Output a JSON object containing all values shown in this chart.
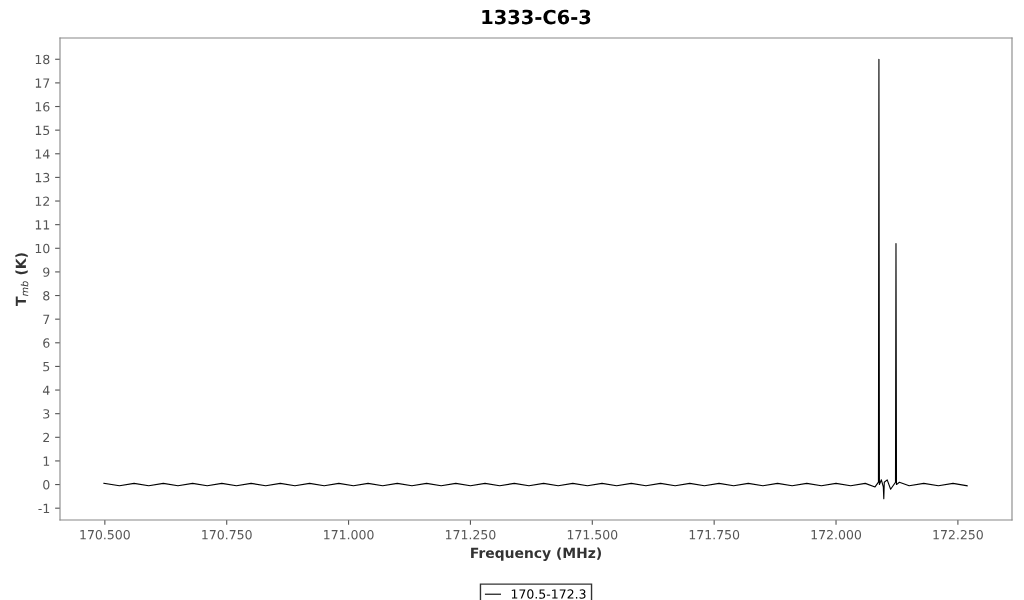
{
  "chart_data": {
    "type": "line",
    "title": "1333-C6-3",
    "xlabel": "Frequency (MHz)",
    "ylabel": "T$_{mb}$ (K)",
    "series": [
      {
        "name": "170.5-172.3",
        "color": "#000000",
        "x": [
          170.498,
          170.53,
          170.56,
          170.59,
          170.62,
          170.65,
          170.68,
          170.71,
          170.74,
          170.77,
          170.8,
          170.83,
          170.86,
          170.89,
          170.92,
          170.95,
          170.98,
          171.01,
          171.04,
          171.07,
          171.1,
          171.13,
          171.16,
          171.19,
          171.22,
          171.25,
          171.28,
          171.31,
          171.34,
          171.37,
          171.4,
          171.43,
          171.46,
          171.49,
          171.52,
          171.55,
          171.58,
          171.61,
          171.64,
          171.67,
          171.7,
          171.73,
          171.76,
          171.79,
          171.82,
          171.85,
          171.88,
          171.91,
          171.94,
          171.97,
          172.0,
          172.03,
          172.06,
          172.08,
          172.087,
          172.088,
          172.089,
          172.093,
          172.097,
          172.098,
          172.099,
          172.105,
          172.112,
          172.122,
          172.123,
          172.124,
          172.13,
          172.15,
          172.18,
          172.21,
          172.24,
          172.269
        ],
        "values": [
          0.05,
          -0.05,
          0.05,
          -0.05,
          0.05,
          -0.05,
          0.05,
          -0.05,
          0.05,
          -0.05,
          0.05,
          -0.05,
          0.05,
          -0.05,
          0.05,
          -0.05,
          0.05,
          -0.05,
          0.05,
          -0.05,
          0.05,
          -0.05,
          0.05,
          -0.05,
          0.05,
          -0.05,
          0.05,
          -0.05,
          0.05,
          -0.05,
          0.05,
          -0.05,
          0.05,
          -0.05,
          0.05,
          -0.05,
          0.05,
          -0.05,
          0.05,
          -0.05,
          0.05,
          -0.05,
          0.05,
          -0.05,
          0.05,
          -0.05,
          0.05,
          -0.05,
          0.05,
          -0.05,
          0.05,
          -0.05,
          0.05,
          -0.1,
          0.1,
          18,
          0.0,
          0.2,
          -0.1,
          -0.6,
          0.1,
          0.2,
          -0.2,
          0.1,
          10.2,
          0.0,
          0.1,
          -0.05,
          0.05,
          -0.05,
          0.05,
          -0.05
        ]
      }
    ],
    "xlim": [
      170.408,
      172.361
    ],
    "ylim": [
      -1.5,
      18.9
    ],
    "xticks": [
      {
        "value": 170.5,
        "label": "170.500"
      },
      {
        "value": 170.75,
        "label": "170.750"
      },
      {
        "value": 171.0,
        "label": "171.000"
      },
      {
        "value": 171.25,
        "label": "171.250"
      },
      {
        "value": 171.5,
        "label": "171.500"
      },
      {
        "value": 171.75,
        "label": "171.750"
      },
      {
        "value": 172.0,
        "label": "172.000"
      },
      {
        "value": 172.25,
        "label": "172.250"
      }
    ],
    "yticks": [
      -1,
      0,
      1,
      2,
      3,
      4,
      5,
      6,
      7,
      8,
      9,
      10,
      11,
      12,
      13,
      14,
      15,
      16,
      17,
      18
    ],
    "grid": false,
    "legend": "bottom",
    "line_style": "solid",
    "marker": "none"
  }
}
